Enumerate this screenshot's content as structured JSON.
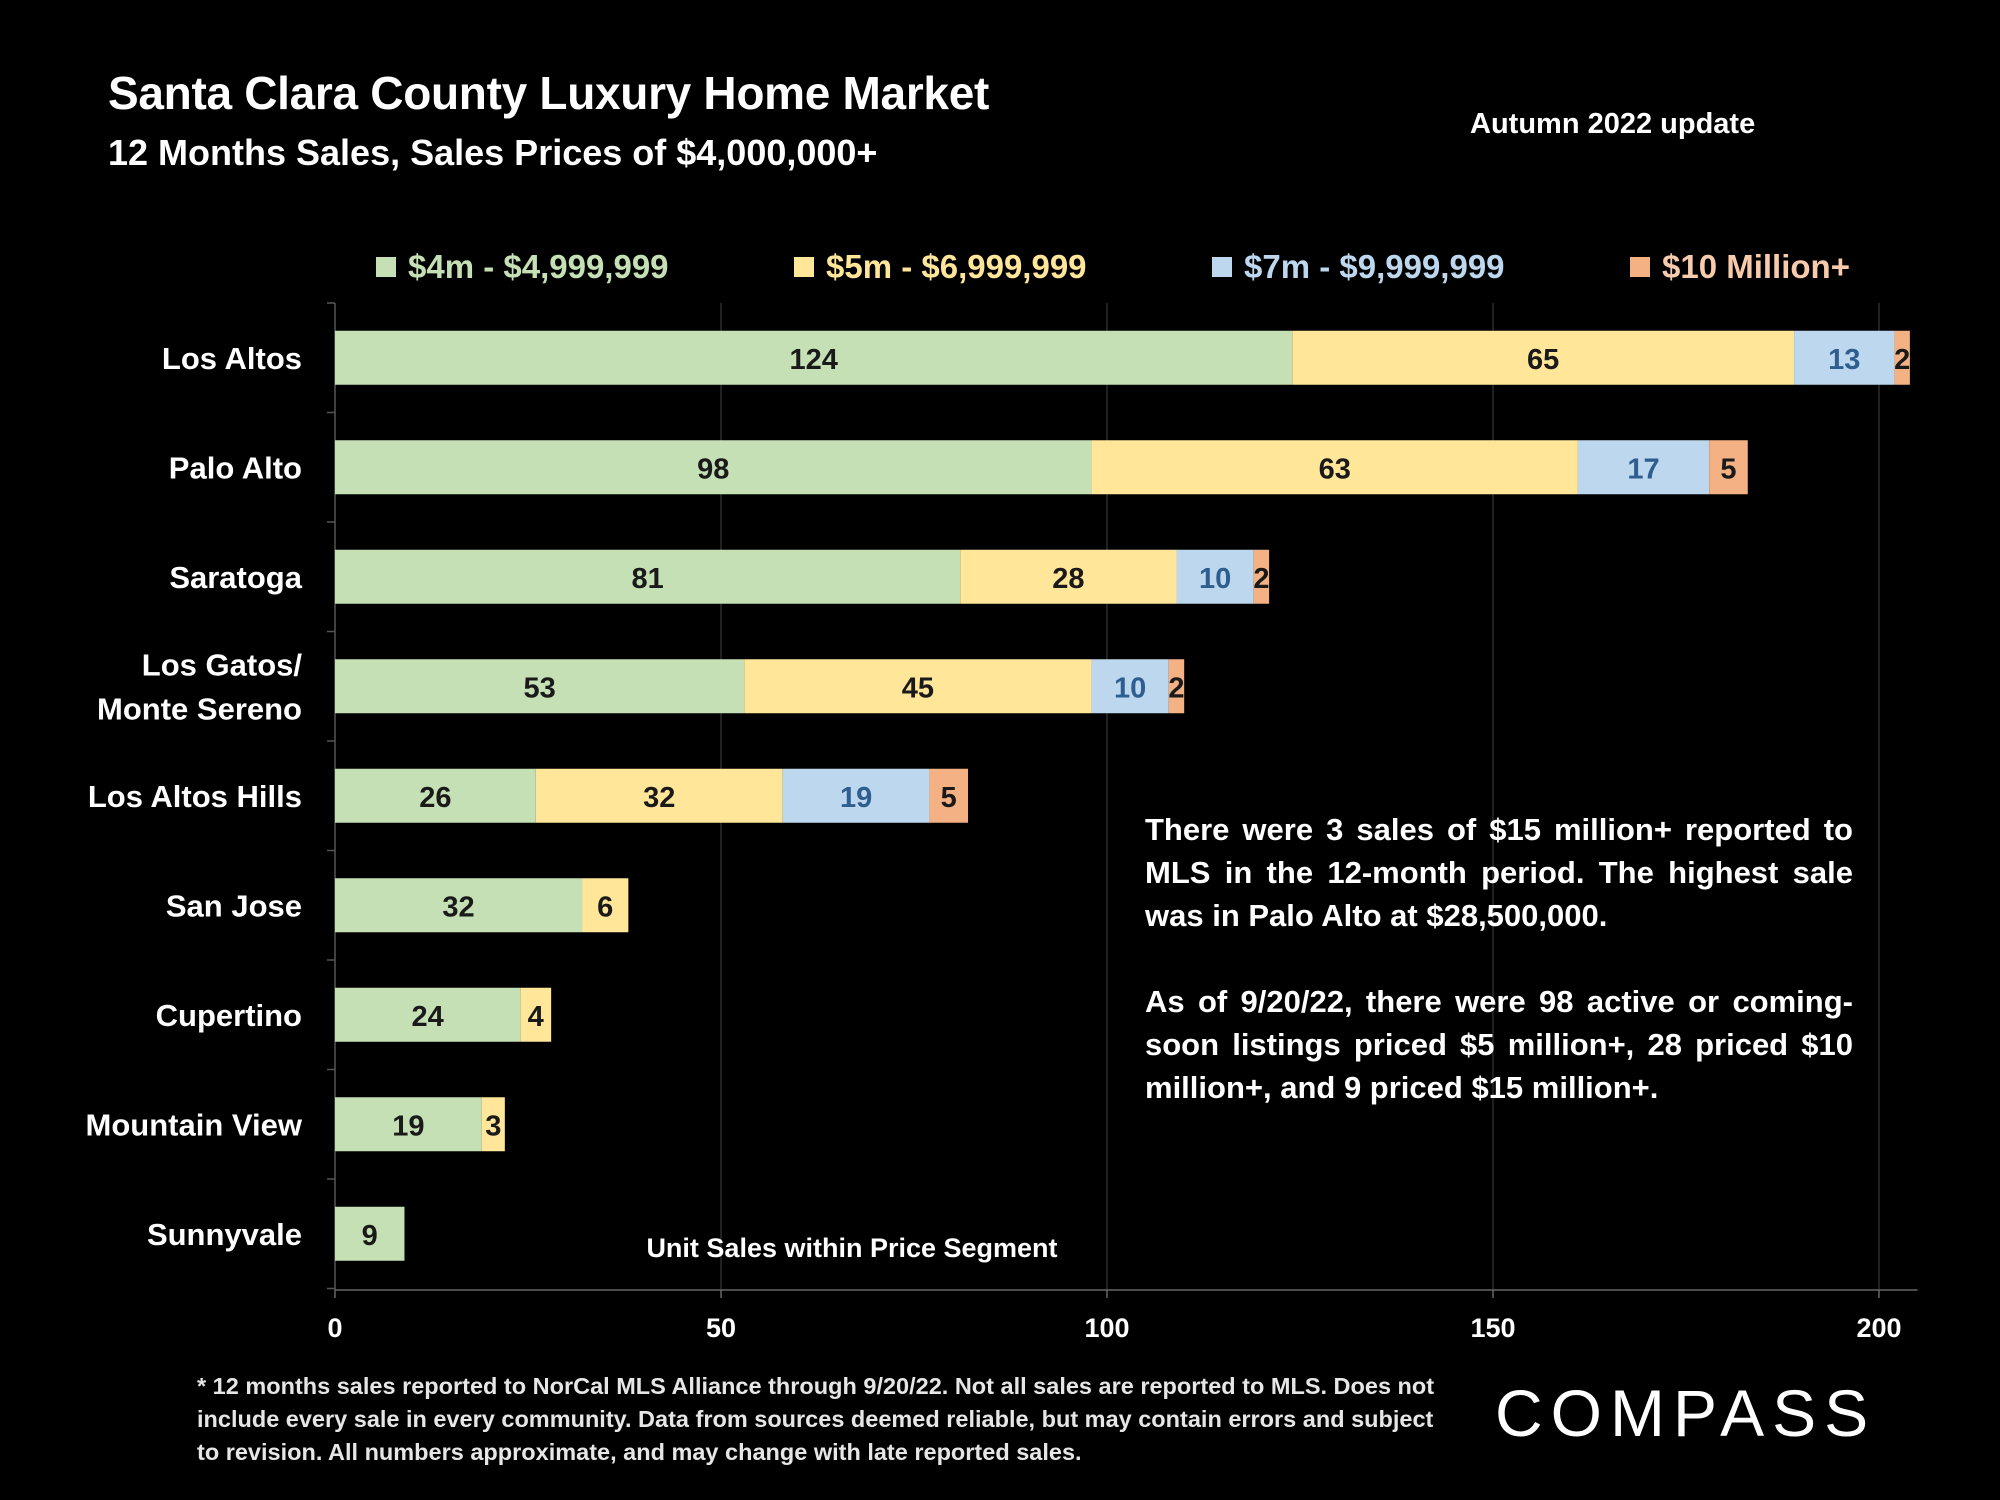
{
  "header": {
    "title": "Santa Clara County Luxury Home Market",
    "subtitle": "12 Months Sales, Sales Prices of $4,000,000+",
    "update": "Autumn 2022 update"
  },
  "note": {
    "para1": "There were 3 sales of $15 million+ reported to MLS in the 12-month period. The highest sale was in Palo Alto at $28,500,000.",
    "para2": "As of 9/20/22, there were 98 active or coming-soon listings priced $5 million+, 28 priced $10 million+, and 9 priced $15 million+."
  },
  "footnote": "* 12 months sales reported to NorCal MLS Alliance through 9/20/22. Not all sales are reported to MLS. Does not include every sale in every community. Data from  sources deemed reliable, but may contain errors and subject to revision. All numbers approximate, and may change with late reported sales.",
  "logo": "COMPASS",
  "colors": {
    "seg1": "#c5e0b4",
    "seg2": "#ffe699",
    "seg3": "#bdd7ee",
    "seg4": "#f4b183",
    "seg1_legend_text": "#c5e0b4",
    "seg2_legend_text": "#ffe699",
    "seg3_legend_text": "#bdd7ee",
    "seg4_legend_text": "#f8cbad",
    "label_dark": "#1a1a1a",
    "label_blue": "#2e5d8f"
  },
  "chart_data": {
    "type": "bar",
    "orientation": "horizontal",
    "stacked": true,
    "categories": [
      "Los Altos",
      "Palo Alto",
      "Saratoga",
      "Los Gatos/\nMonte Sereno",
      "Los Altos Hills",
      "San Jose",
      "Cupertino",
      "Mountain View",
      "Sunnyvale"
    ],
    "series": [
      {
        "name": "$4m - $4,999,999",
        "values": [
          124,
          98,
          81,
          53,
          26,
          32,
          24,
          19,
          9
        ]
      },
      {
        "name": "$5m - $6,999,999",
        "values": [
          65,
          63,
          28,
          45,
          32,
          6,
          4,
          3,
          0
        ]
      },
      {
        "name": "$7m - $9,999,999",
        "values": [
          13,
          17,
          10,
          10,
          19,
          0,
          0,
          0,
          0
        ]
      },
      {
        "name": "$10 Million+",
        "values": [
          2,
          5,
          2,
          2,
          5,
          0,
          0,
          0,
          0
        ]
      }
    ],
    "xlabel": "Unit Sales within Price Segment",
    "xlim": [
      0,
      205
    ],
    "xticks": [
      0,
      50,
      100,
      150,
      200
    ],
    "grid": true,
    "legend": "top"
  }
}
